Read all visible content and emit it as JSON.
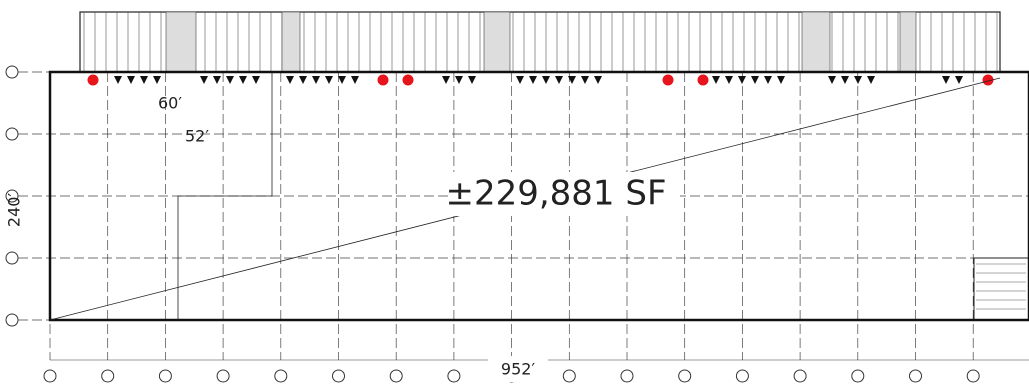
{
  "labels": {
    "bay_depth": "60′",
    "bay_width": "52′",
    "depth": "240′",
    "area": "±229,881 SF",
    "width": "952′"
  }
}
